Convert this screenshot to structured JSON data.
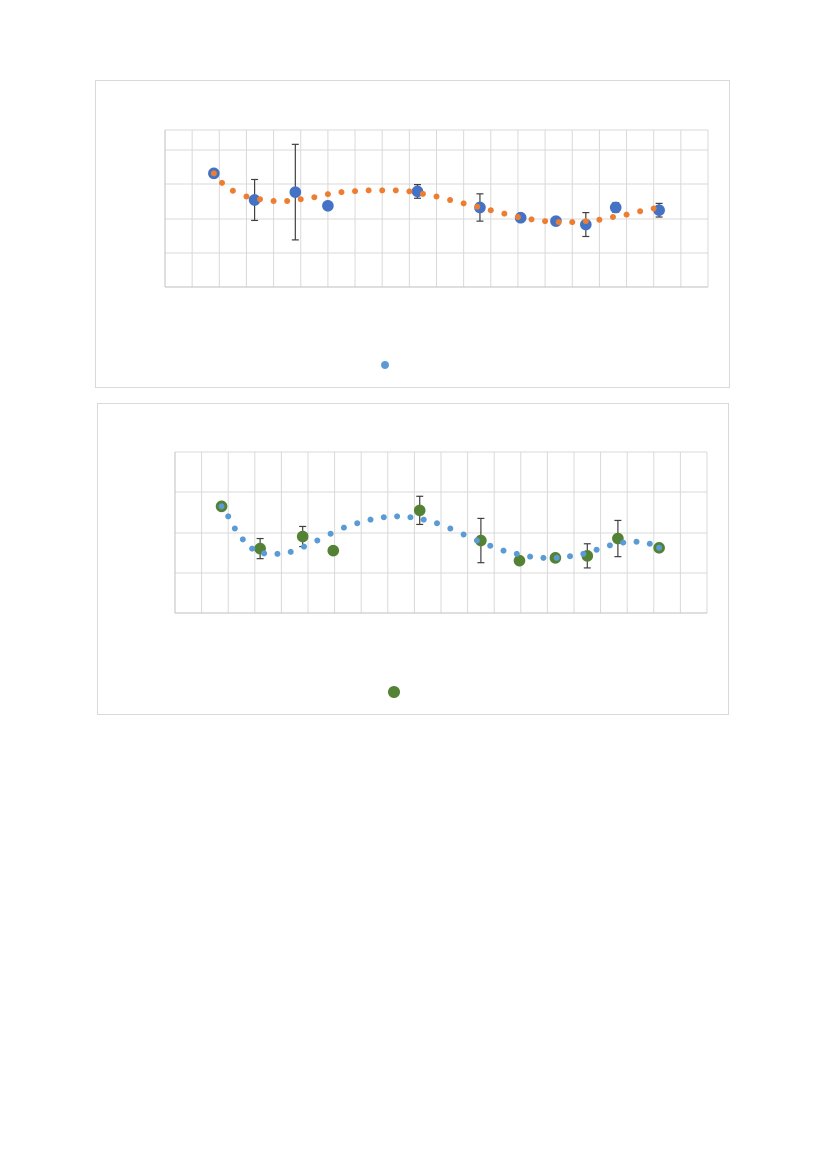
{
  "chart_data": [
    {
      "type": "scatter",
      "title": "",
      "xlabel": "",
      "ylabel": "",
      "grid": true,
      "legend_position": "bottom",
      "colors": {
        "points": "#4472c4",
        "trend": "#ed7d31",
        "legend_marker": "#5b9bd5",
        "error_bar": "#404040"
      },
      "xlim": [
        0,
        20
      ],
      "ylim": [
        0,
        4.6
      ],
      "series": [
        {
          "kind": "points",
          "x": [
            1.8,
            3.3,
            4.8,
            6.0,
            9.3,
            11.6,
            13.1,
            14.4,
            15.5,
            16.6,
            18.2
          ],
          "y": [
            3.33,
            2.55,
            2.78,
            2.38,
            2.8,
            2.33,
            2.03,
            1.93,
            1.83,
            2.33,
            2.25
          ],
          "err": [
            0.08,
            0.6,
            1.4,
            0.04,
            0.2,
            0.4,
            0.06,
            0.04,
            0.35,
            0.14,
            0.2
          ]
        },
        {
          "kind": "trend",
          "x": [
            1.8,
            2.1,
            2.5,
            3.0,
            3.5,
            4.0,
            4.5,
            5.0,
            5.5,
            6.0,
            6.5,
            7.0,
            7.5,
            8.0,
            8.5,
            9.0,
            9.5,
            10.0,
            10.5,
            11.0,
            11.5,
            12.0,
            12.5,
            13.0,
            13.5,
            14.0,
            14.5,
            15.0,
            15.5,
            16.0,
            16.5,
            17.0,
            17.5,
            18.0
          ],
          "y": [
            3.33,
            3.05,
            2.82,
            2.65,
            2.57,
            2.52,
            2.52,
            2.57,
            2.63,
            2.72,
            2.78,
            2.81,
            2.83,
            2.83,
            2.83,
            2.8,
            2.73,
            2.65,
            2.55,
            2.45,
            2.35,
            2.25,
            2.15,
            2.05,
            1.98,
            1.93,
            1.9,
            1.9,
            1.93,
            1.97,
            2.05,
            2.12,
            2.22,
            2.3
          ]
        }
      ]
    },
    {
      "type": "scatter",
      "title": "",
      "xlabel": "",
      "ylabel": "",
      "grid": true,
      "legend_position": "bottom",
      "colors": {
        "points": "#548235",
        "trend": "#5b9bd5",
        "legend_marker": "#548235",
        "error_bar": "#404040"
      },
      "xlim": [
        0,
        20
      ],
      "ylim": [
        0,
        4
      ],
      "series": [
        {
          "kind": "points",
          "x": [
            1.75,
            3.2,
            4.8,
            5.95,
            9.2,
            11.5,
            12.95,
            14.3,
            15.5,
            16.65,
            18.2
          ],
          "y": [
            2.65,
            1.6,
            1.9,
            1.55,
            2.55,
            1.8,
            1.3,
            1.37,
            1.42,
            1.85,
            1.62
          ],
          "err": [
            0.06,
            0.25,
            0.25,
            0.03,
            0.35,
            0.55,
            0.06,
            0.03,
            0.3,
            0.45,
            0.08
          ]
        },
        {
          "kind": "trend",
          "x": [
            1.75,
            2.0,
            2.25,
            2.55,
            2.9,
            3.35,
            3.85,
            4.35,
            4.85,
            5.35,
            5.85,
            6.35,
            6.85,
            7.35,
            7.85,
            8.35,
            8.85,
            9.35,
            9.85,
            10.35,
            10.85,
            11.35,
            11.85,
            12.35,
            12.85,
            13.35,
            13.85,
            14.35,
            14.85,
            15.35,
            15.85,
            16.35,
            16.85,
            17.35,
            17.85,
            18.2
          ],
          "y": [
            2.65,
            2.4,
            2.1,
            1.83,
            1.6,
            1.48,
            1.47,
            1.52,
            1.65,
            1.8,
            1.97,
            2.12,
            2.23,
            2.32,
            2.38,
            2.4,
            2.38,
            2.32,
            2.23,
            2.1,
            1.95,
            1.8,
            1.67,
            1.55,
            1.47,
            1.4,
            1.37,
            1.37,
            1.41,
            1.47,
            1.57,
            1.68,
            1.75,
            1.77,
            1.72,
            1.62
          ]
        }
      ]
    }
  ]
}
